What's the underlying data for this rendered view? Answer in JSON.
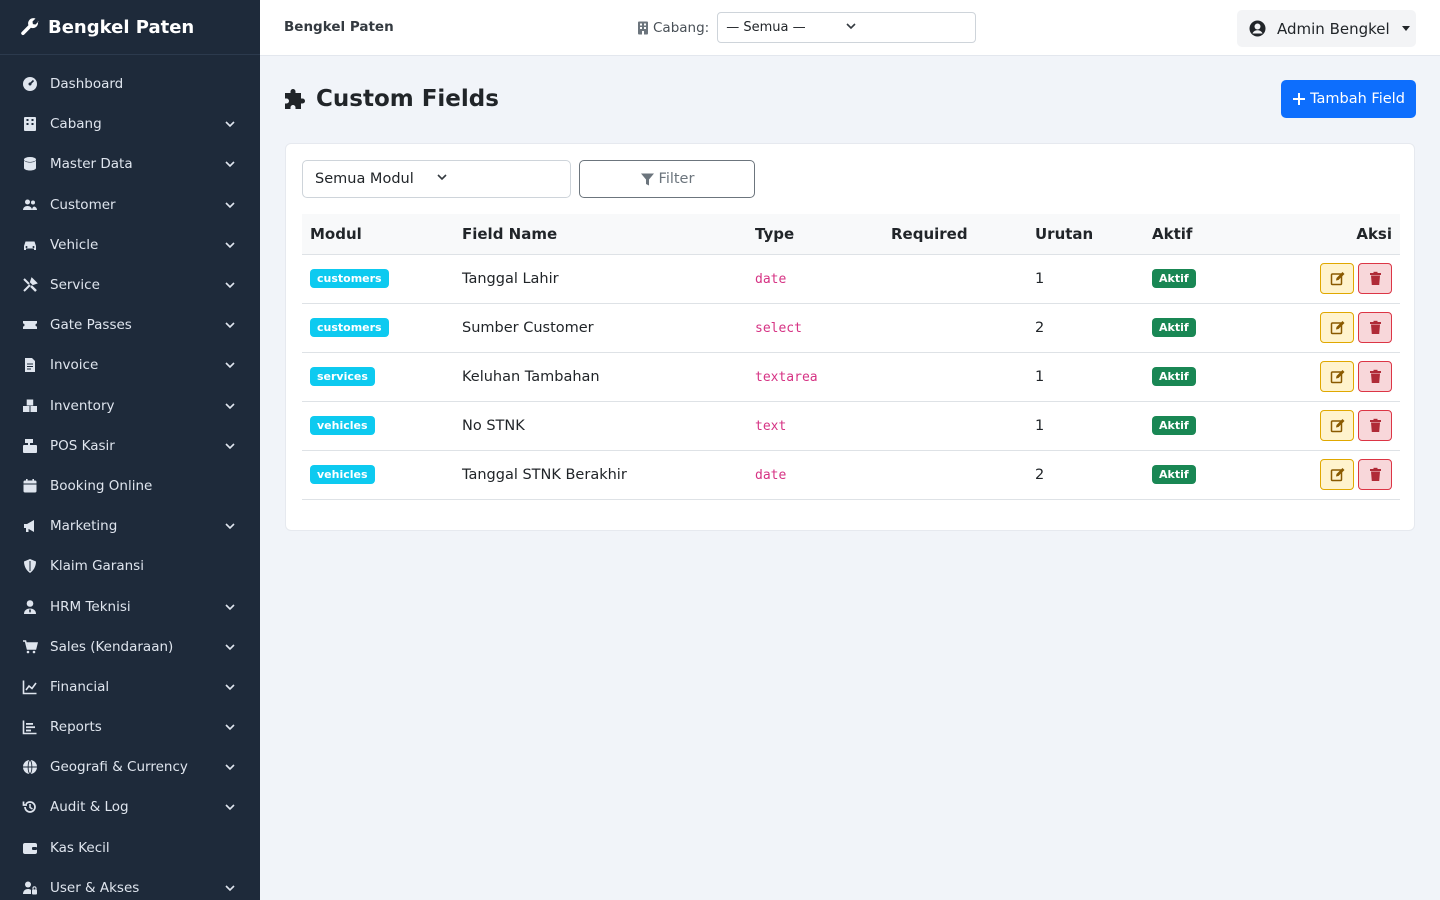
{
  "sidebar": {
    "brand": "Bengkel Paten",
    "items": [
      {
        "label": "Dashboard",
        "icon": "dashboard-icon",
        "has_sub": false
      },
      {
        "label": "Cabang",
        "icon": "building-icon",
        "has_sub": true
      },
      {
        "label": "Master Data",
        "icon": "database-icon",
        "has_sub": true
      },
      {
        "label": "Customer",
        "icon": "users-icon",
        "has_sub": true
      },
      {
        "label": "Vehicle",
        "icon": "car-icon",
        "has_sub": true
      },
      {
        "label": "Service",
        "icon": "tools-icon",
        "has_sub": true
      },
      {
        "label": "Gate Passes",
        "icon": "ticket-icon",
        "has_sub": true
      },
      {
        "label": "Invoice",
        "icon": "invoice-icon",
        "has_sub": true
      },
      {
        "label": "Inventory",
        "icon": "boxes-icon",
        "has_sub": true
      },
      {
        "label": "POS Kasir",
        "icon": "cash-register-icon",
        "has_sub": true
      },
      {
        "label": "Booking Online",
        "icon": "calendar-icon",
        "has_sub": false
      },
      {
        "label": "Marketing",
        "icon": "bullhorn-icon",
        "has_sub": true
      },
      {
        "label": "Klaim Garansi",
        "icon": "shield-icon",
        "has_sub": false
      },
      {
        "label": "HRM Teknisi",
        "icon": "user-tie-icon",
        "has_sub": true
      },
      {
        "label": "Sales (Kendaraan)",
        "icon": "cart-icon",
        "has_sub": true
      },
      {
        "label": "Financial",
        "icon": "chart-line-icon",
        "has_sub": true
      },
      {
        "label": "Reports",
        "icon": "chart-bar-icon",
        "has_sub": true
      },
      {
        "label": "Geografi & Currency",
        "icon": "globe-icon",
        "has_sub": true
      },
      {
        "label": "Audit & Log",
        "icon": "history-icon",
        "has_sub": true
      },
      {
        "label": "Kas Kecil",
        "icon": "wallet-icon",
        "has_sub": false
      },
      {
        "label": "User & Akses",
        "icon": "user-lock-icon",
        "has_sub": true
      }
    ]
  },
  "topbar": {
    "app_name": "Bengkel Paten",
    "branch_label": "Cabang:",
    "branch_value": "— Semua —",
    "user_name": "Admin Bengkel"
  },
  "page": {
    "title": "Custom Fields",
    "add_button": "Tambah Field"
  },
  "filters": {
    "module_value": "Semua Modul",
    "filter_button": "Filter"
  },
  "table": {
    "headers": [
      "Modul",
      "Field Name",
      "Type",
      "Required",
      "Urutan",
      "Aktif",
      "Aksi"
    ],
    "rows": [
      {
        "module": "customers",
        "name": "Tanggal Lahir",
        "type": "date",
        "required": "",
        "order": "1",
        "active": "Aktif"
      },
      {
        "module": "customers",
        "name": "Sumber Customer",
        "type": "select",
        "required": "",
        "order": "2",
        "active": "Aktif"
      },
      {
        "module": "services",
        "name": "Keluhan Tambahan",
        "type": "textarea",
        "required": "",
        "order": "1",
        "active": "Aktif"
      },
      {
        "module": "vehicles",
        "name": "No STNK",
        "type": "text",
        "required": "",
        "order": "1",
        "active": "Aktif"
      },
      {
        "module": "vehicles",
        "name": "Tanggal STNK Berakhir",
        "type": "date",
        "required": "",
        "order": "2",
        "active": "Aktif"
      }
    ]
  },
  "colors": {
    "sidebar_bg": "#1e2a3a",
    "primary": "#0d6efd",
    "info_badge": "#0dcaf0",
    "success_badge": "#198754",
    "code_text": "#d63384"
  }
}
